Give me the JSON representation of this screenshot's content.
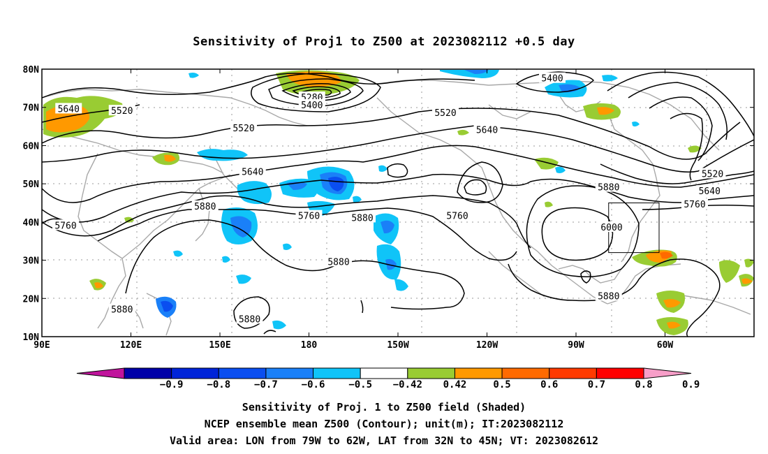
{
  "title": "Sensitivity of Proj1 to Z500 at 2023082112 +0.5 day",
  "lat_ticks": [
    {
      "lat": 80,
      "label": "80N"
    },
    {
      "lat": 70,
      "label": "70N"
    },
    {
      "lat": 60,
      "label": "60N"
    },
    {
      "lat": 50,
      "label": "50N"
    },
    {
      "lat": 40,
      "label": "40N"
    },
    {
      "lat": 30,
      "label": "30N"
    },
    {
      "lat": 20,
      "label": "20N"
    },
    {
      "lat": 10,
      "label": "10N"
    }
  ],
  "lon_ticks": [
    {
      "lon": 90,
      "label": "90E"
    },
    {
      "lon": 120,
      "label": "120E"
    },
    {
      "lon": 150,
      "label": "150E"
    },
    {
      "lon": 180,
      "label": "180"
    },
    {
      "lon": 210,
      "label": "150W"
    },
    {
      "lon": 240,
      "label": "120W"
    },
    {
      "lon": 270,
      "label": "90W"
    },
    {
      "lon": 300,
      "label": "60W"
    }
  ],
  "contour_labels": [
    {
      "text": "5640",
      "lon": 99,
      "lat": 69.5
    },
    {
      "text": "5520",
      "lon": 117,
      "lat": 69
    },
    {
      "text": "5280",
      "lon": 181,
      "lat": 72.5
    },
    {
      "text": "5400",
      "lon": 181,
      "lat": 70.5
    },
    {
      "text": "5400",
      "lon": 262,
      "lat": 77.5
    },
    {
      "text": "5520",
      "lon": 158,
      "lat": 64.5
    },
    {
      "text": "5520",
      "lon": 226,
      "lat": 68.5
    },
    {
      "text": "5640",
      "lon": 240,
      "lat": 64
    },
    {
      "text": "5640",
      "lon": 161,
      "lat": 53
    },
    {
      "text": "5760",
      "lon": 180,
      "lat": 41.5
    },
    {
      "text": "5760",
      "lon": 98,
      "lat": 39
    },
    {
      "text": "5880",
      "lon": 145,
      "lat": 44
    },
    {
      "text": "5880",
      "lon": 198,
      "lat": 41
    },
    {
      "text": "5760",
      "lon": 230,
      "lat": 41.5
    },
    {
      "text": "5880",
      "lon": 190,
      "lat": 29.5
    },
    {
      "text": "5880",
      "lon": 117,
      "lat": 17
    },
    {
      "text": "5880",
      "lon": 160,
      "lat": 14.5
    },
    {
      "text": "5880",
      "lon": 281,
      "lat": 49
    },
    {
      "text": "6000",
      "lon": 282,
      "lat": 38.5
    },
    {
      "text": "5880",
      "lon": 281,
      "lat": 20.5
    },
    {
      "text": "5520",
      "lon": 316,
      "lat": 52.5
    },
    {
      "text": "5640",
      "lon": 315,
      "lat": 48
    },
    {
      "text": "5760",
      "lon": 310,
      "lat": 44.5
    }
  ],
  "valid_area": {
    "lon_w": -79,
    "lon_e": -62,
    "lat_s": 32,
    "lat_n": 45
  },
  "colorbar": {
    "labels": [
      "−0.9",
      "−0.8",
      "−0.7",
      "−0.6",
      "−0.5",
      "−0.42",
      "0.42",
      "0.5",
      "0.6",
      "0.7",
      "0.8",
      "0.9"
    ],
    "colors": [
      "#c0149c",
      "#0000a8",
      "#0024d8",
      "#0a4ef0",
      "#1a80f8",
      "#10c4f8",
      "#ffffff",
      "#99cc33",
      "#ff9900",
      "#ff6a00",
      "#ff3a00",
      "#ff0000",
      "#f79ec8"
    ]
  },
  "captions": [
    "Sensitivity of Proj. 1 to Z500 field (Shaded)",
    "NCEP ensemble mean Z500 (Contour); unit(m); IT:2023082112",
    "Valid area: LON from 79W to 62W, LAT from 32N to 45N; VT: 2023082612"
  ]
}
